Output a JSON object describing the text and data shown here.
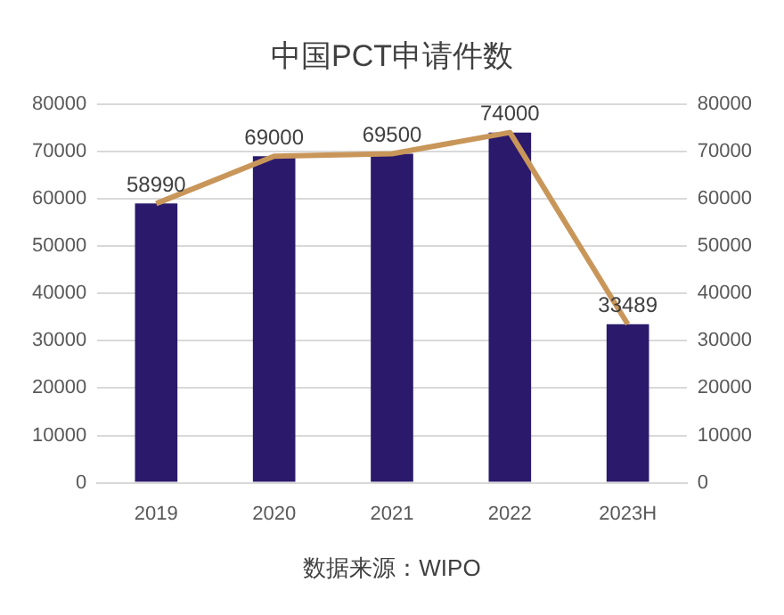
{
  "chart_data": {
    "type": "bar",
    "title": "中国PCT申请件数",
    "categories": [
      "2019",
      "2020",
      "2021",
      "2022",
      "2023H"
    ],
    "series": [
      {
        "color": "#2b1a6b",
        "values": [
          58990,
          69000,
          69500,
          74000,
          33489
        ],
        "value_labels": [
          "58990",
          "69000",
          "69500",
          "74000",
          "33489"
        ]
      },
      {
        "type": "line",
        "axis": "y2",
        "color": "#c9965a",
        "values": [
          58990,
          69000,
          69500,
          74000,
          33489
        ]
      }
    ],
    "ylim": [
      0,
      80000
    ],
    "yticks": [
      0,
      10000,
      20000,
      30000,
      40000,
      50000,
      60000,
      70000,
      80000
    ],
    "y2lim": [
      0,
      80000
    ],
    "y2ticks": [
      0,
      10000,
      20000,
      30000,
      40000,
      50000,
      60000,
      70000,
      80000
    ],
    "grid": "y",
    "legend": false,
    "marker": "none",
    "annotations": [
      "数据来源：WIPO"
    ]
  }
}
